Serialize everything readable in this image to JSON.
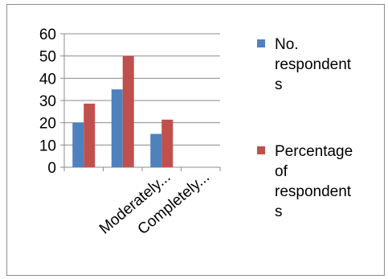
{
  "chart_data": {
    "type": "bar",
    "categories": [
      "",
      "",
      "Moderately...",
      "Completely..."
    ],
    "series": [
      {
        "name": "No. respondents",
        "values": [
          20,
          35,
          15,
          0
        ],
        "color": "#4f81bd"
      },
      {
        "name": "Percentage of respondents",
        "values": [
          28.6,
          50,
          21.4,
          0
        ],
        "color": "#c0504d"
      }
    ],
    "ylim": [
      0,
      60
    ],
    "yticks": [
      0,
      10,
      20,
      30,
      40,
      50,
      60
    ],
    "grid": true,
    "legend_position": "right",
    "legend": [
      {
        "lines": [
          "No.",
          "respondent",
          "s"
        ]
      },
      {
        "lines": [
          "Percentage",
          "of",
          "respondent",
          "s"
        ]
      }
    ]
  }
}
